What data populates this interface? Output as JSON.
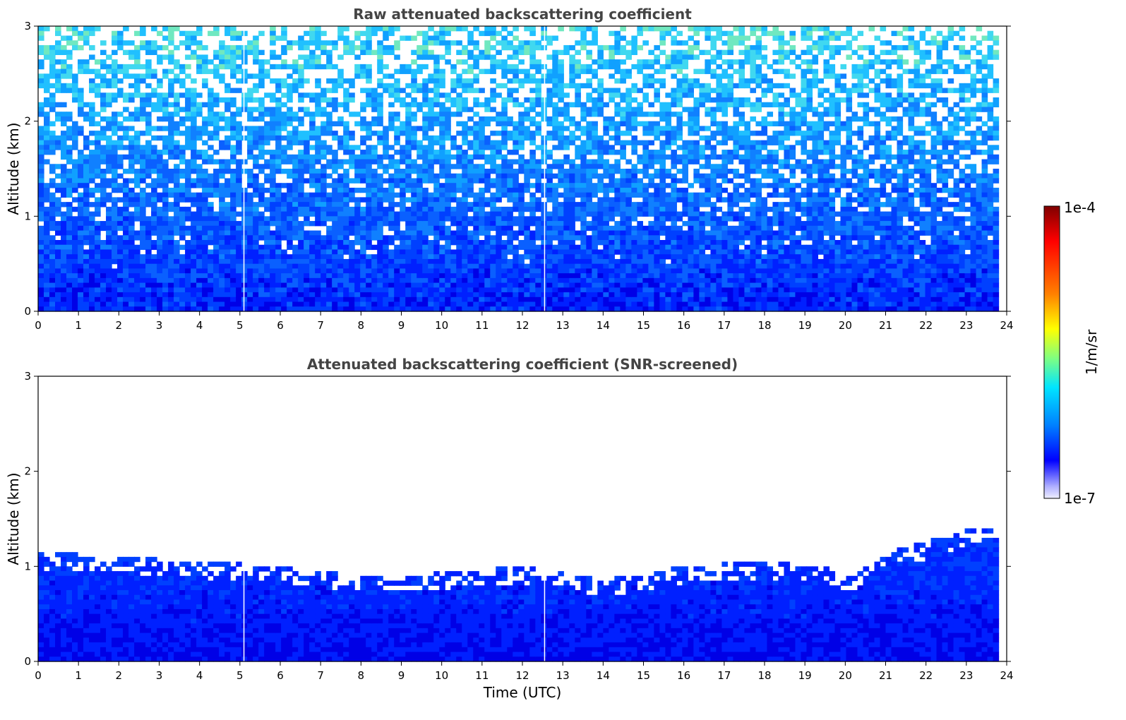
{
  "chart_data": [
    {
      "type": "heatmap",
      "title": "Raw attenuated backscattering coefficient",
      "xlabel": "",
      "ylabel": "Altitude (km)",
      "xlim": [
        0,
        24
      ],
      "ylim": [
        0,
        3
      ],
      "x_ticks": [
        "0",
        "1",
        "2",
        "3",
        "4",
        "5",
        "6",
        "7",
        "8",
        "9",
        "10",
        "11",
        "12",
        "13",
        "14",
        "15",
        "16",
        "17",
        "18",
        "19",
        "20",
        "21",
        "22",
        "23",
        "24"
      ],
      "y_ticks": [
        "0",
        "1",
        "2",
        "3"
      ],
      "data_end_time": 23.8,
      "gaps_time": [
        5.1,
        12.55
      ],
      "screened": false
    },
    {
      "type": "heatmap",
      "title": "Attenuated backscattering coefficient (SNR-screened)",
      "xlabel": "Time (UTC)",
      "ylabel": "Altitude (km)",
      "xlim": [
        0,
        24
      ],
      "ylim": [
        0,
        3
      ],
      "x_ticks": [
        "0",
        "1",
        "2",
        "3",
        "4",
        "5",
        "6",
        "7",
        "8",
        "9",
        "10",
        "11",
        "12",
        "13",
        "14",
        "15",
        "16",
        "17",
        "18",
        "19",
        "20",
        "21",
        "22",
        "23",
        "24"
      ],
      "y_ticks": [
        "0",
        "1",
        "2",
        "3"
      ],
      "data_end_time": 23.8,
      "gaps_time": [
        5.1,
        12.55
      ],
      "screened": true,
      "signal_top_km": [
        [
          0,
          1.1
        ],
        [
          2,
          1.05
        ],
        [
          4,
          1.0
        ],
        [
          6,
          0.95
        ],
        [
          8,
          0.85
        ],
        [
          10,
          0.88
        ],
        [
          12,
          0.95
        ],
        [
          14,
          0.8
        ],
        [
          16,
          0.95
        ],
        [
          18,
          1.0
        ],
        [
          19.5,
          0.95
        ],
        [
          20,
          0.8
        ],
        [
          21,
          1.1
        ],
        [
          22,
          1.2
        ],
        [
          23,
          1.35
        ],
        [
          23.8,
          1.4
        ]
      ]
    }
  ],
  "colorbar": {
    "max_label": "1e-4",
    "min_label": "1e-7",
    "units": "1/m/sr",
    "colormap": "jet",
    "colors": [
      "#7f0000",
      "#ff0000",
      "#ff8000",
      "#ffff00",
      "#80ff80",
      "#00e5ff",
      "#0080ff",
      "#0000ff",
      "#6060ff",
      "#b0b0ff",
      "#e8e8ff"
    ]
  }
}
